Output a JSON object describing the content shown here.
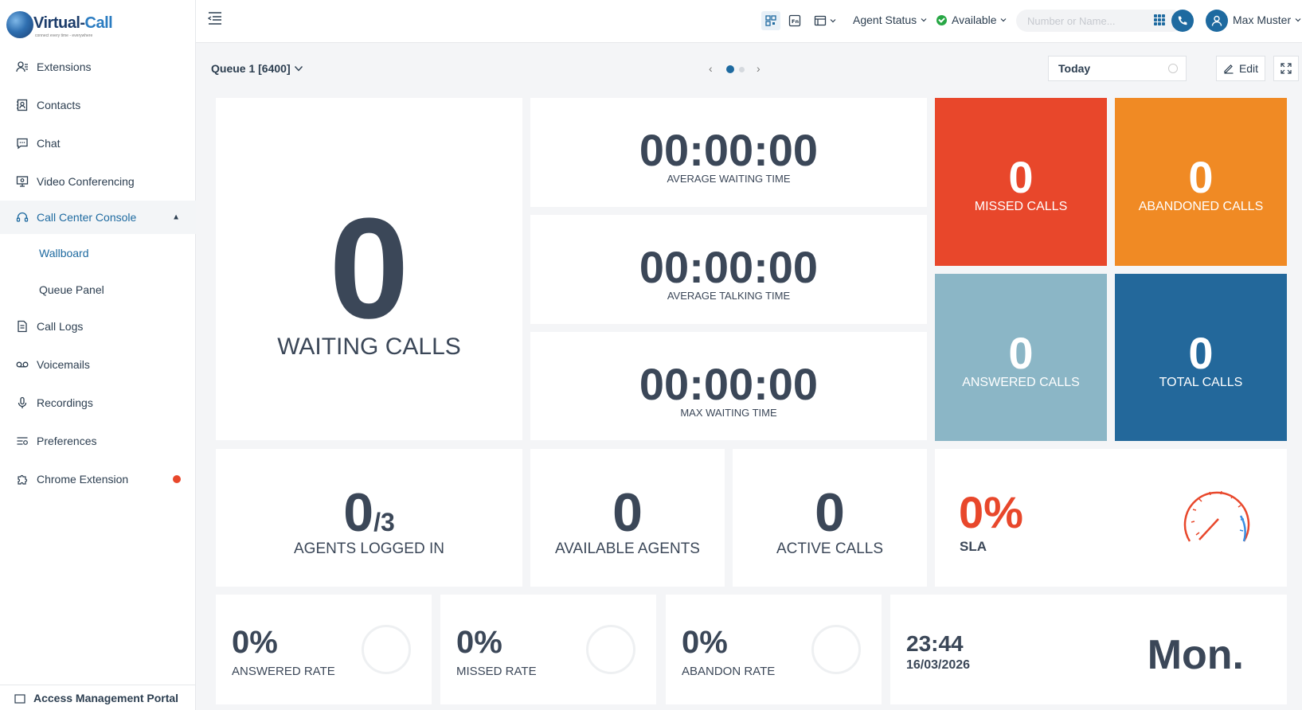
{
  "brand": {
    "logo_main": "Virtual-",
    "logo_accent": "Call",
    "logo_tagline": "connect every time - everywhere"
  },
  "sidebar": {
    "items": [
      {
        "label": "Extensions",
        "icon": "extensions-icon"
      },
      {
        "label": "Contacts",
        "icon": "contacts-icon"
      },
      {
        "label": "Chat",
        "icon": "chat-icon"
      },
      {
        "label": "Video Conferencing",
        "icon": "video-icon"
      },
      {
        "label": "Call Center Console",
        "icon": "headset-icon"
      },
      {
        "label": "Call Logs",
        "icon": "call-logs-icon"
      },
      {
        "label": "Voicemails",
        "icon": "voicemail-icon"
      },
      {
        "label": "Recordings",
        "icon": "microphone-icon"
      },
      {
        "label": "Preferences",
        "icon": "preferences-icon"
      },
      {
        "label": "Chrome Extension",
        "icon": "puzzle-icon"
      }
    ],
    "sub_items": [
      {
        "label": "Wallboard"
      },
      {
        "label": "Queue Panel"
      }
    ],
    "footer_label": "Access Management Portal"
  },
  "topbar": {
    "agent_status_label": "Agent Status",
    "availability_label": "Available",
    "search_placeholder": "Number or Name...",
    "user_name": "Max Muster"
  },
  "toolbar": {
    "queue_label": "Queue 1 [6400]",
    "date_range": "Today",
    "edit_label": "Edit",
    "page_count": 2,
    "current_page": 1
  },
  "wallboard": {
    "waiting_calls": {
      "value": "0",
      "label": "WAITING CALLS"
    },
    "avg_waiting_time": {
      "value": "00:00:00",
      "label": "AVERAGE WAITING TIME"
    },
    "avg_talking_time": {
      "value": "00:00:00",
      "label": "AVERAGE TALKING TIME"
    },
    "max_waiting_time": {
      "value": "00:00:00",
      "label": "MAX WAITING TIME"
    },
    "missed_calls": {
      "value": "0",
      "label": "MISSED CALLS",
      "color": "#e8472b"
    },
    "abandoned_calls": {
      "value": "0",
      "label": "ABANDONED CALLS",
      "color": "#f08a24"
    },
    "answered_calls": {
      "value": "0",
      "label": "ANSWERED CALLS",
      "color": "#8bb6c6"
    },
    "total_calls": {
      "value": "0",
      "label": "TOTAL CALLS",
      "color": "#23689b"
    },
    "agents_logged_in": {
      "value": "0",
      "total": "/3",
      "label": "AGENTS LOGGED IN"
    },
    "available_agents": {
      "value": "0",
      "label": "AVAILABLE AGENTS"
    },
    "active_calls": {
      "value": "0",
      "label": "ACTIVE CALLS"
    },
    "sla": {
      "value": "0%",
      "label": "SLA"
    },
    "answered_rate": {
      "value": "0%",
      "label": "ANSWERED RATE"
    },
    "missed_rate": {
      "value": "0%",
      "label": "MISSED RATE"
    },
    "abandon_rate": {
      "value": "0%",
      "label": "ABANDON RATE"
    },
    "clock": {
      "time": "23:44",
      "date": "16/03/2026",
      "weekday": "Mon."
    }
  },
  "colors": {
    "accent": "#1e6aa0",
    "tile_text": "#3b4758",
    "sla_red": "#e8472b",
    "status_green": "#28a745"
  }
}
